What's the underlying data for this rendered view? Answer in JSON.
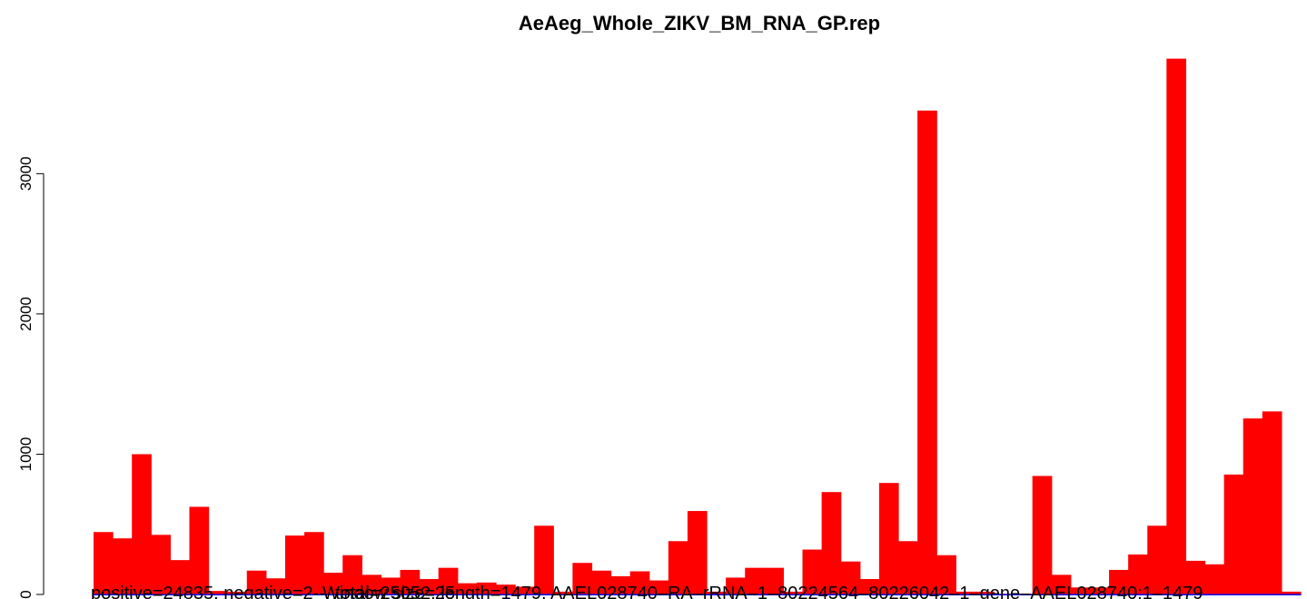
{
  "chart_data": {
    "type": "bar",
    "title": "AeAeg_Whole_ZIKV_BM_RNA_GP.rep",
    "xlabel": "",
    "ylabel": "",
    "ylim": [
      0,
      3850
    ],
    "yticks": [
      0,
      1000,
      2000,
      3000
    ],
    "yticklabels": [
      "0",
      "1000",
      "2000",
      "3000"
    ],
    "series": [
      {
        "color": "#ff0000",
        "values": [
          445,
          400,
          1000,
          425,
          245,
          625,
          25,
          20,
          170,
          115,
          420,
          445,
          155,
          280,
          140,
          120,
          175,
          110,
          190,
          80,
          85,
          70,
          55,
          490,
          20,
          225,
          170,
          130,
          165,
          100,
          380,
          595,
          20,
          120,
          190,
          190,
          20,
          320,
          730,
          235,
          110,
          795,
          380,
          3450,
          280,
          20,
          20,
          5,
          5,
          845,
          140,
          50,
          50,
          175,
          285,
          490,
          3820,
          240,
          215,
          855,
          1255,
          1305,
          20
        ]
      },
      {
        "color": "#0000ff",
        "values": [
          0,
          0,
          0,
          0,
          0,
          0,
          0,
          0,
          0,
          0,
          0,
          0,
          0,
          0,
          0,
          0,
          0,
          0,
          0,
          0,
          0,
          0,
          0,
          0,
          0,
          0,
          0,
          0,
          0,
          0,
          0,
          0,
          0,
          0,
          0,
          0,
          0,
          0,
          0,
          0,
          0,
          0,
          0,
          0,
          0,
          0,
          0,
          0,
          0,
          0,
          0,
          0,
          0,
          0,
          0,
          0,
          0,
          0,
          0,
          0,
          0,
          0,
          0
        ]
      }
    ],
    "annotation": "positive=24835, negative=2‑‑, total=25052, length=1479, AAEL028740–RA–rRNA–1–80224564–80226042–1–gene–AAEL028740:1–1479",
    "overlay_text": "Window size=25"
  }
}
